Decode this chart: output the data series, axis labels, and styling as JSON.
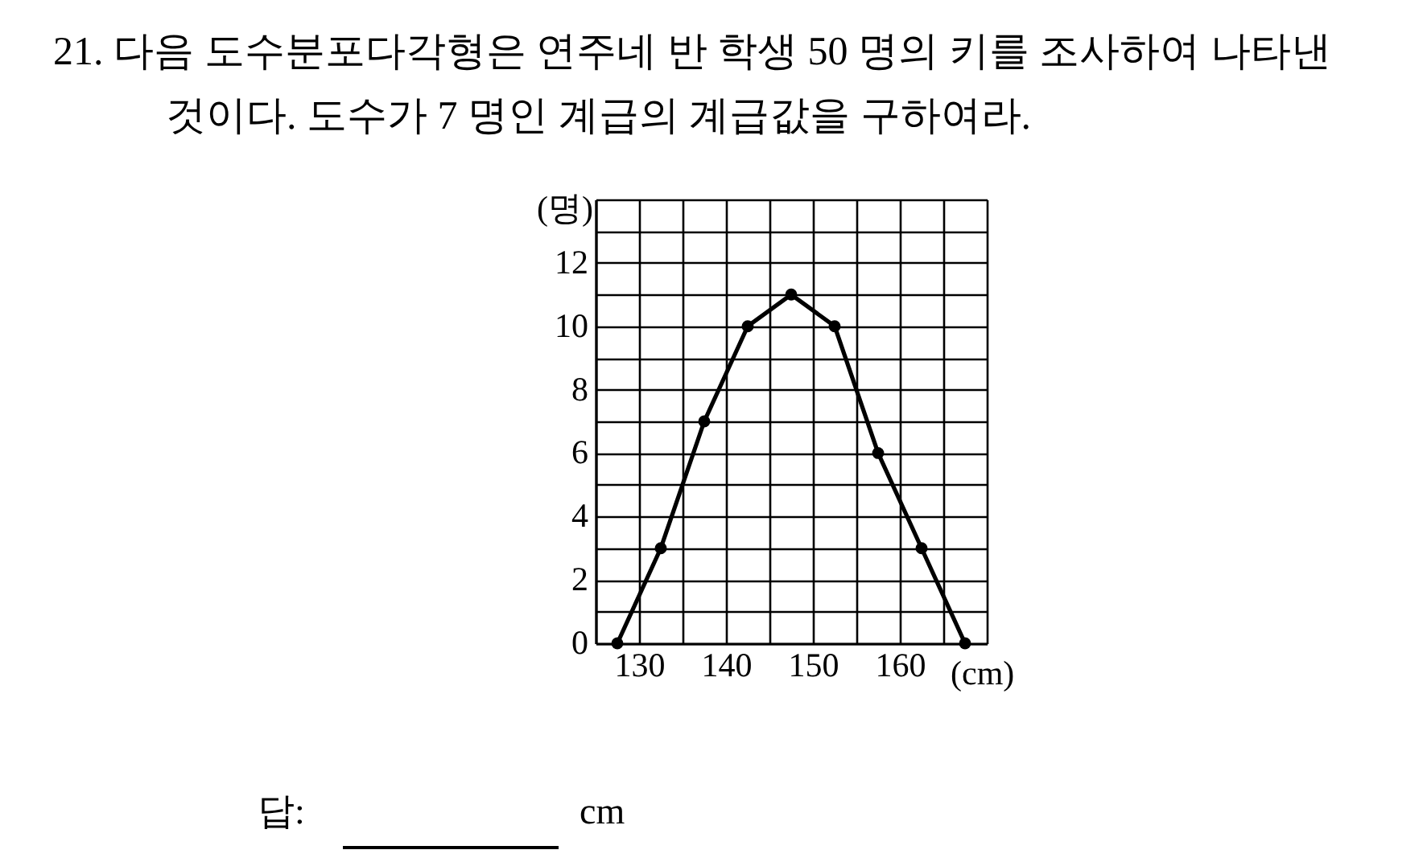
{
  "chart_data": {
    "type": "line",
    "title": "21. 다음 도수분포다각형은 연주네 반 학생 50 명의 키를 조사하여 나타낸\n것이다. 도수가 7 명인 계급의 계급값을 구하여라.",
    "xlabel": "(cm)",
    "ylabel": "(명)",
    "x": [
      127.5,
      132.5,
      137.5,
      142.5,
      147.5,
      152.5,
      157.5,
      162.5,
      167.5
    ],
    "series": [
      {
        "color": "#000000",
        "values": [
          0,
          3,
          7,
          10,
          11,
          10,
          6,
          3,
          0
        ]
      }
    ],
    "xlim": [
      125,
      170
    ],
    "ylim": [
      0,
      14
    ],
    "xticks": [
      {
        "value": 125,
        "label": null
      },
      130,
      {
        "value": 135,
        "label": null
      },
      140,
      {
        "value": 145,
        "label": null
      },
      150,
      {
        "value": 155,
        "label": null
      },
      160,
      {
        "value": 165,
        "label": null
      },
      {
        "value": 170,
        "label": null
      }
    ],
    "yticks": [
      0,
      {
        "value": 1,
        "label": null
      },
      2,
      {
        "value": 3,
        "label": null
      },
      4,
      {
        "value": 5,
        "label": null
      },
      6,
      {
        "value": 7,
        "label": null
      },
      8,
      {
        "value": 9,
        "label": null
      },
      10,
      {
        "value": 11,
        "label": null
      },
      12,
      {
        "value": 13,
        "label": null
      },
      {
        "value": 14,
        "label": null
      }
    ],
    "grid": true,
    "marker": "circle",
    "line_style": "solid",
    "annotations": [
      "답:",
      "cm"
    ]
  }
}
